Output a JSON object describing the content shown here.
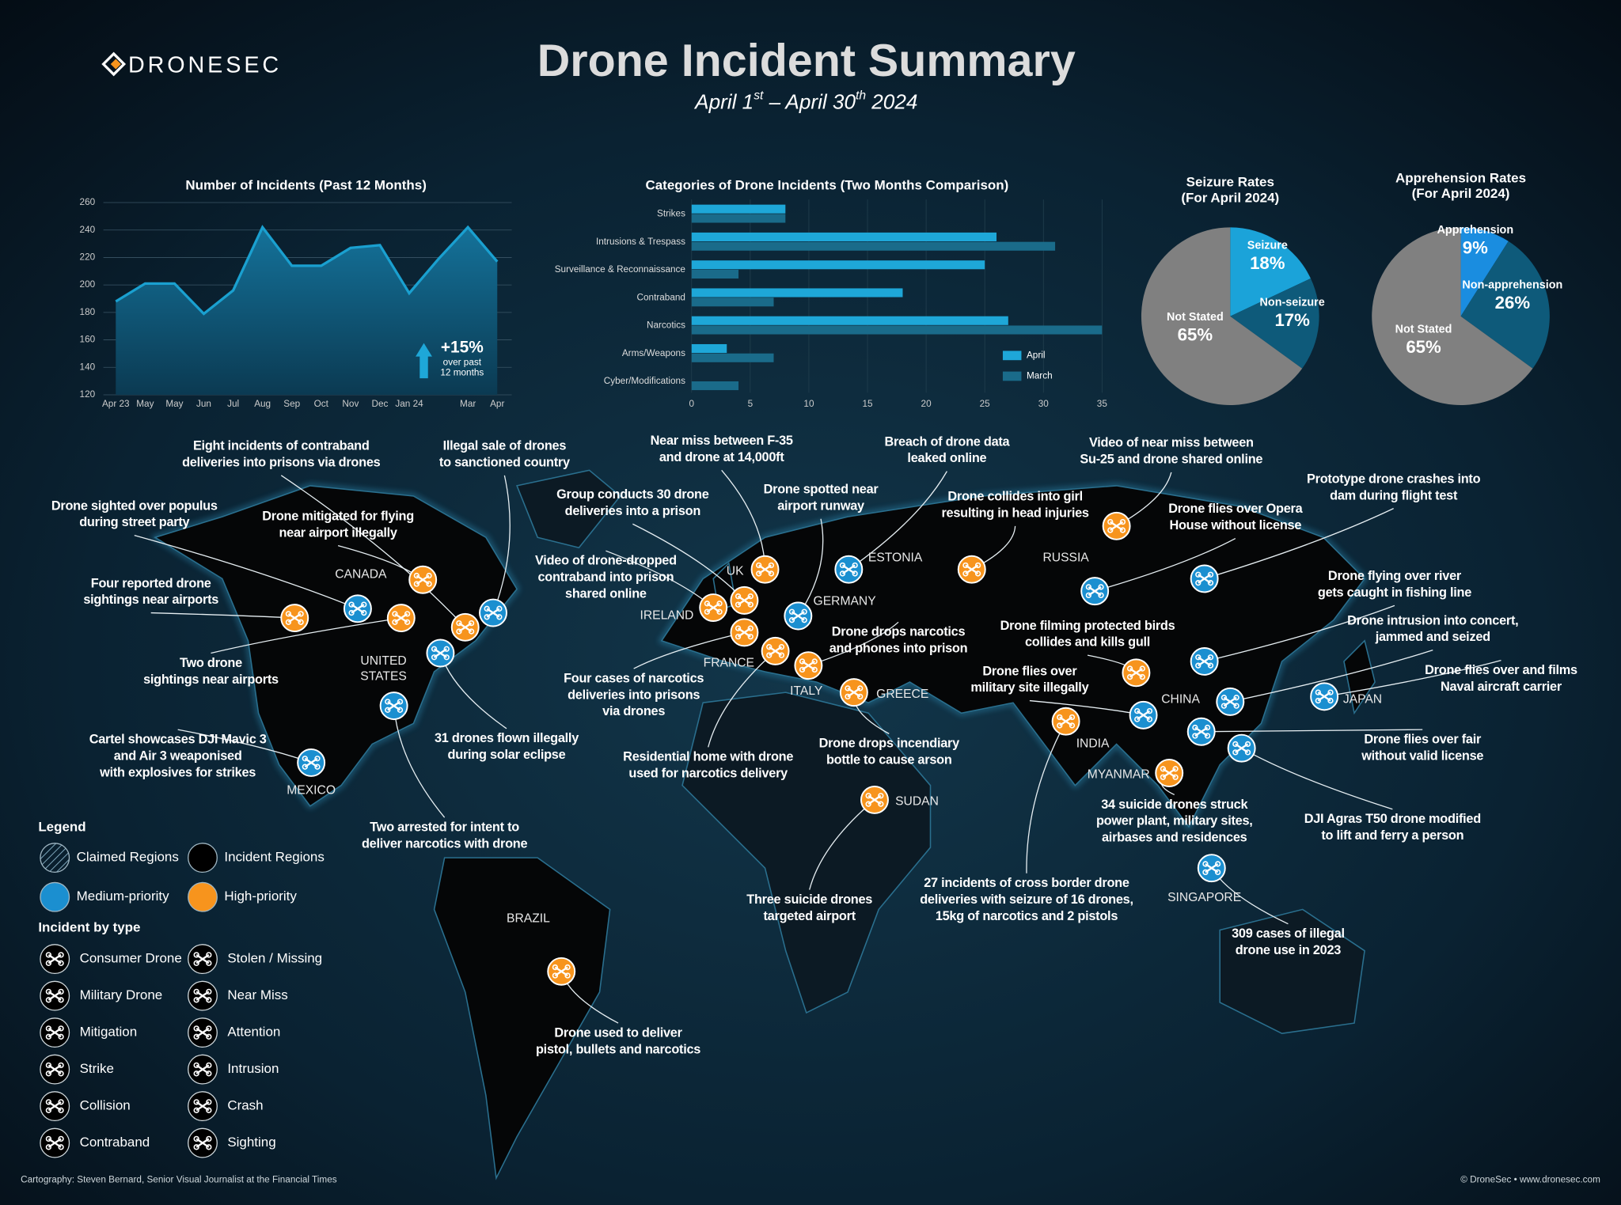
{
  "header": {
    "logo": "DRONESEC",
    "title": "Drone Incident Summary",
    "subtitle_parts": [
      "April 1",
      "st",
      " – April 30",
      "th",
      " 2024"
    ]
  },
  "chart_data": [
    {
      "type": "area",
      "title": "Number of Incidents (Past 12 Months)",
      "categories": [
        "Apr 23",
        "May",
        "May",
        "Jun",
        "Jul",
        "Aug",
        "Sep",
        "Oct",
        "Nov",
        "Dec",
        "Jan 24",
        null,
        "Mar",
        "Apr"
      ],
      "values": [
        188,
        201,
        201,
        179,
        196,
        242,
        214,
        214,
        227,
        229,
        194,
        219,
        242,
        217
      ],
      "color": "#1aa0d0",
      "ylim": [
        120,
        260
      ],
      "yticks": [
        120,
        140,
        160,
        180,
        200,
        220,
        240,
        260
      ],
      "grid": true,
      "annotation": [
        "+15%",
        "over past",
        "12 months"
      ]
    },
    {
      "type": "hbar",
      "title": "Categories of Drone Incidents (Two Months Comparison)",
      "categories": [
        "Strikes",
        "Intrusions & Trespass",
        "Surveillance & Reconnaissance",
        "Contraband",
        "Narcotics",
        "Arms/Weapons",
        "Cyber/Modifications"
      ],
      "series": [
        {
          "name": "April",
          "color": "#1ea7d8",
          "values": [
            8,
            26,
            25,
            18,
            27,
            3,
            0
          ]
        },
        {
          "name": "March",
          "color": "#1a6b8a",
          "values": [
            8,
            31,
            4,
            7,
            35,
            7,
            4
          ]
        }
      ],
      "xlim": [
        0,
        35
      ],
      "xticks": [
        0,
        5,
        10,
        15,
        20,
        25,
        30,
        35
      ],
      "grid": true,
      "legend": "bottom-right"
    },
    {
      "type": "pie",
      "title": [
        "Seizure Rates",
        "(For April 2024)"
      ],
      "categories": [
        "Seizure",
        "Non-seizure",
        "Not Stated"
      ],
      "values": [
        18,
        17,
        65
      ],
      "value_labels": [
        "18%",
        "17%",
        "65%"
      ],
      "colors": [
        "#1ba3d9",
        "#0e5a7a",
        "#808080"
      ]
    },
    {
      "type": "pie",
      "title": [
        "Apprehension Rates",
        "(For April 2024)"
      ],
      "categories": [
        "Apprehension",
        "Non-apprehension",
        "Not Stated"
      ],
      "values": [
        9,
        26,
        65
      ],
      "value_labels": [
        "9%",
        "26%",
        "65%"
      ],
      "colors": [
        "#1a8de0",
        "#0e5a7a",
        "#808080"
      ]
    }
  ],
  "map": {
    "countries": [
      [
        "CANADA"
      ],
      [
        "UNITED",
        "STATES"
      ],
      [
        "MEXICO"
      ],
      [
        "BRAZIL"
      ],
      [
        "IRELAND"
      ],
      [
        "UK"
      ],
      [
        "FRANCE"
      ],
      [
        "GERMANY"
      ],
      [
        "ESTONIA"
      ],
      [
        "ITALY"
      ],
      [
        "GREECE"
      ],
      [
        "SUDAN"
      ],
      [
        "RUSSIA"
      ],
      [
        "CHINA"
      ],
      [
        "JAPAN"
      ],
      [
        "INDIA"
      ],
      [
        "MYANMAR"
      ],
      [
        "SINGAPORE"
      ]
    ],
    "callouts": [
      [
        "Eight incidents of contraband",
        "deliveries into prisons via drones"
      ],
      [
        "Illegal sale of drones",
        "to sanctioned country"
      ],
      [
        "Near miss between F-35",
        "and drone at 14,000ft"
      ],
      [
        "Breach of drone data",
        "leaked online"
      ],
      [
        "Video of near miss between",
        "Su-25 and drone shared online"
      ],
      [
        "Drone sighted over populus",
        "during street party"
      ],
      [
        "Drone mitigated for flying",
        "near airport illegally"
      ],
      [
        "Group conducts 30 drone",
        "deliveries into a prison"
      ],
      [
        "Drone spotted near",
        "airport runway"
      ],
      [
        "Drone collides into girl",
        "resulting in head injuries"
      ],
      [
        "Prototype drone crashes into",
        "dam during flight test"
      ],
      [
        "Drone flies over Opera",
        "House without license"
      ],
      [
        "Four reported drone",
        "sightings near airports"
      ],
      [
        "Video of drone-dropped",
        "contraband into prison",
        "shared online"
      ],
      [
        "Drone flying over river",
        "gets caught in fishing line"
      ],
      [
        "Drone drops narcotics",
        "and phones into prison"
      ],
      [
        "Drone filming protected birds",
        "collides and kills gull"
      ],
      [
        "Drone intrusion into concert,",
        "jammed and seized"
      ],
      [
        "Two drone",
        "sightings near airports"
      ],
      [
        "Drone flies over and films",
        "Naval aircraft carrier"
      ],
      [
        "Drone flies over",
        "military site illegally"
      ],
      [
        "Four cases of narcotics",
        "deliveries into prisons",
        "via drones"
      ],
      [
        "Cartel showcases DJI Mavic 3",
        "and Air 3 weaponised",
        "with explosives for strikes"
      ],
      [
        "31 drones flown illegally",
        "during solar eclipse"
      ],
      [
        "Drone drops incendiary",
        "bottle to cause arson"
      ],
      [
        "Drone flies over fair",
        "without valid license"
      ],
      [
        "Residential home with drone",
        "used for narcotics delivery"
      ],
      [
        "34 suicide drones struck",
        "power plant, military sites,",
        "airbases and residences"
      ],
      [
        "DJI Agras T50 drone modified",
        "to lift and ferry a person"
      ],
      [
        "Two arrested for intent to",
        "deliver narcotics with drone"
      ],
      [
        "Three suicide drones",
        "targeted airport"
      ],
      [
        "27 incidents of cross border drone",
        "deliveries with seizure of 16 drones,",
        "15kg of narcotics and 2 pistols"
      ],
      [
        "309 cases of illegal",
        "drone use in 2023"
      ],
      [
        "Drone used to deliver",
        "pistol, bullets and narcotics"
      ]
    ]
  },
  "legend": {
    "title": "Legend",
    "regions": [
      "Claimed Regions",
      "Incident Regions",
      "Medium-priority",
      "High-priority"
    ],
    "type_title": "Incident by type",
    "types": [
      "Consumer Drone",
      "Stolen / Missing",
      "Military Drone",
      "Near Miss",
      "Mitigation",
      "Attention",
      "Strike",
      "Intrusion",
      "Collision",
      "Crash",
      "Contraband",
      "Sighting"
    ]
  },
  "footer": {
    "credit": "Cartography: Steven Bernard, Senior Visual Journalist at the Financial Times",
    "copyright": "© DroneSec • www.dronesec.com"
  }
}
